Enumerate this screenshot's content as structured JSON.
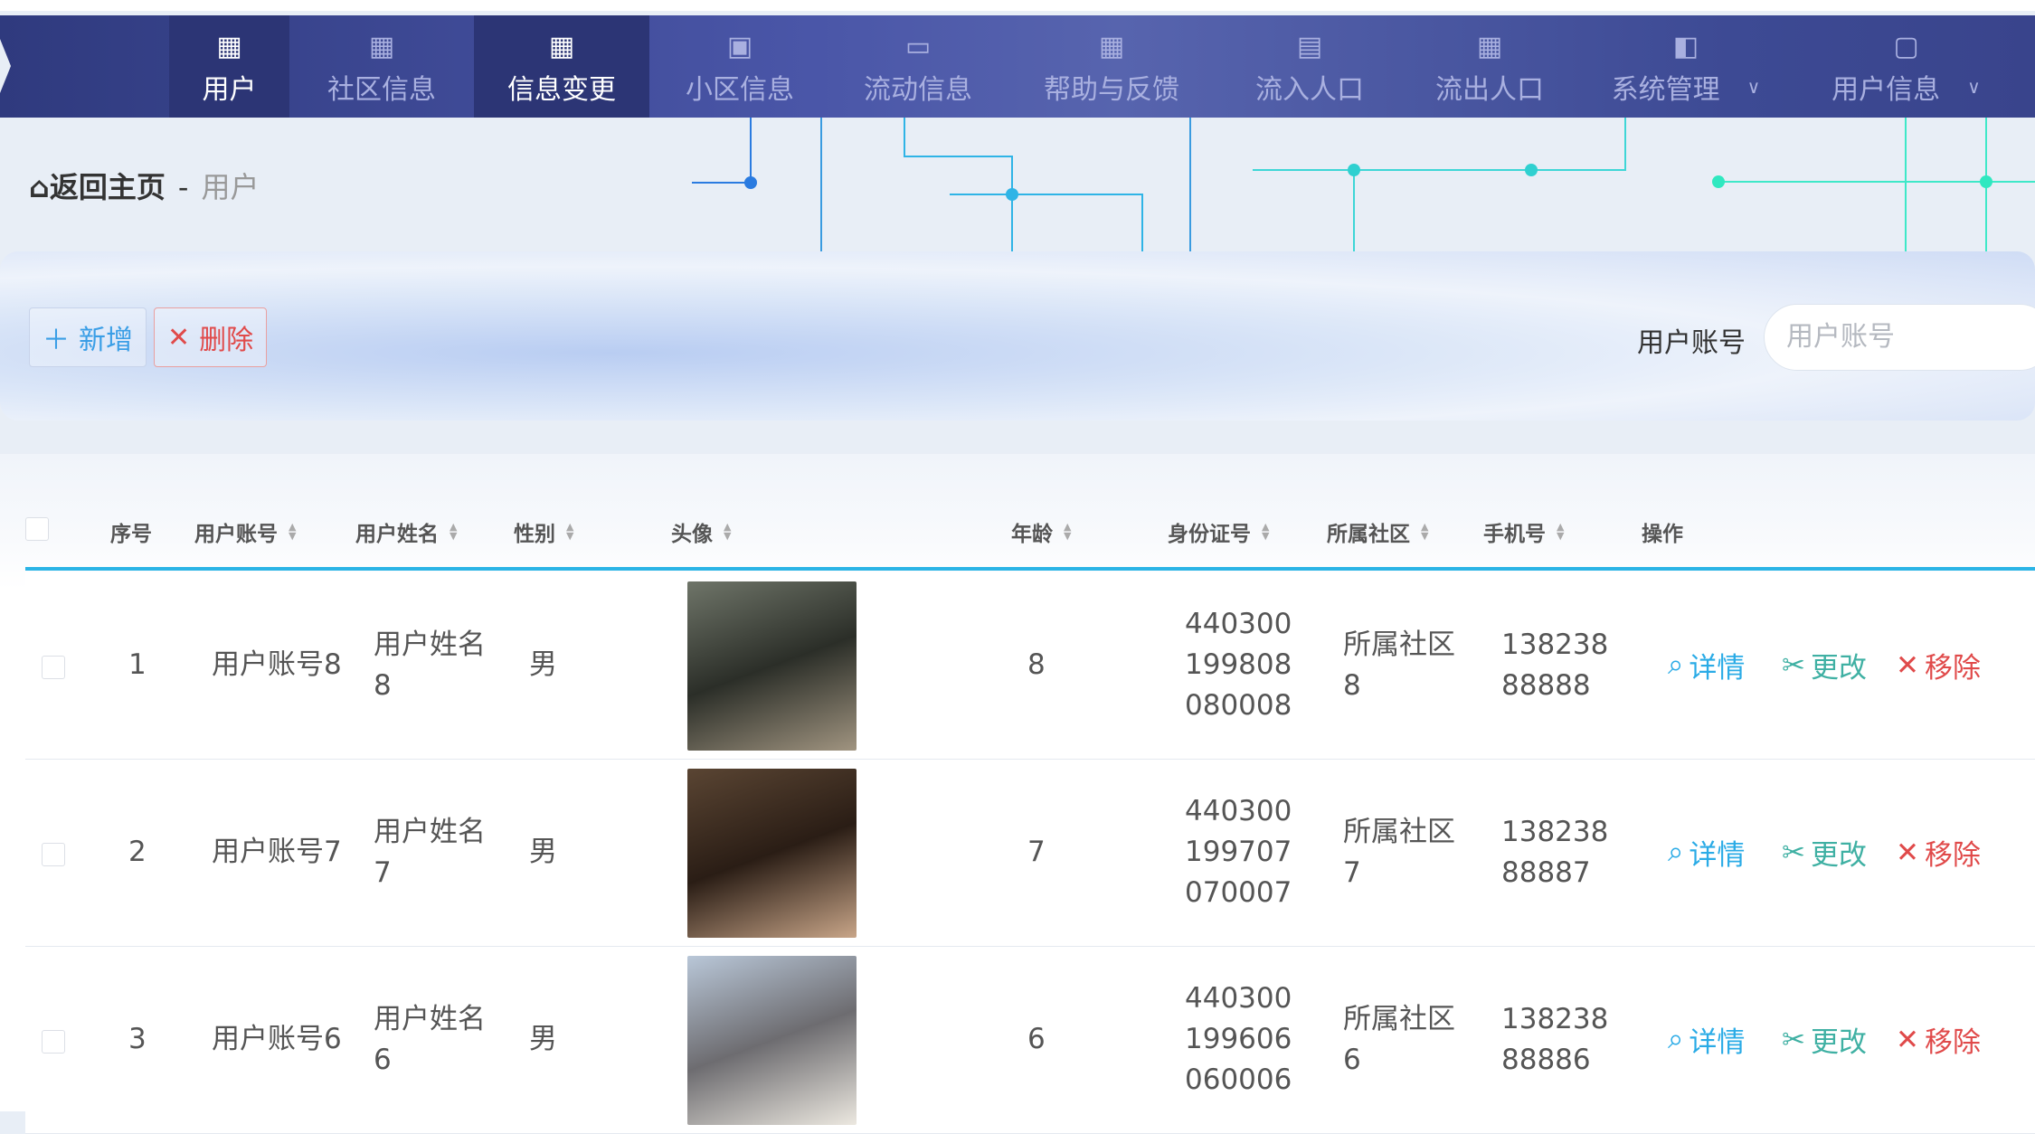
{
  "nav": {
    "items": [
      {
        "label": "用户",
        "icon": "grid-icon",
        "active": true
      },
      {
        "label": "社区信息",
        "icon": "grid-icon"
      },
      {
        "label": "信息变更",
        "icon": "grid-icon",
        "active": true
      },
      {
        "label": "小区信息",
        "icon": "briefcase-icon"
      },
      {
        "label": "流动信息",
        "icon": "monitor-icon"
      },
      {
        "label": "帮助与反馈",
        "icon": "grid-icon"
      },
      {
        "label": "流入人口",
        "icon": "chat-icon"
      },
      {
        "label": "流出人口",
        "icon": "grid-icon"
      },
      {
        "label": "系统管理",
        "icon": "wallet-icon",
        "dropdown": true
      },
      {
        "label": "用户信息",
        "icon": "card-icon",
        "dropdown": true
      }
    ]
  },
  "breadcrumb": {
    "home": "返回主页",
    "separator": "-",
    "current": "用户"
  },
  "toolbar": {
    "add_label": "新增",
    "delete_label": "删除",
    "search_label": "用户账号",
    "search_placeholder": "用户账号",
    "search_value": ""
  },
  "table": {
    "headers": [
      "序号",
      "用户账号",
      "用户姓名",
      "性别",
      "头像",
      "年龄",
      "身份证号",
      "所属社区",
      "手机号",
      "操作"
    ],
    "actions": {
      "detail": "详情",
      "update": "更改",
      "remove": "移除"
    },
    "rows": [
      {
        "index": "1",
        "account": "用户账号8",
        "name": "用户姓名8",
        "gender": "男",
        "age": "8",
        "id_number": "440300199808080008",
        "community": "所属社区8",
        "phone": "13823888888"
      },
      {
        "index": "2",
        "account": "用户账号7",
        "name": "用户姓名7",
        "gender": "男",
        "age": "7",
        "id_number": "440300199707070007",
        "community": "所属社区7",
        "phone": "13823888887"
      },
      {
        "index": "3",
        "account": "用户账号6",
        "name": "用户姓名6",
        "gender": "男",
        "age": "6",
        "id_number": "440300199606060006",
        "community": "所属社区6",
        "phone": "13823888886"
      }
    ]
  },
  "colors": {
    "nav_active": "#2c3575",
    "accent": "#2bb4e6",
    "detail": "#2aabe6",
    "update": "#3fb0a3",
    "remove": "#e04a4a"
  }
}
